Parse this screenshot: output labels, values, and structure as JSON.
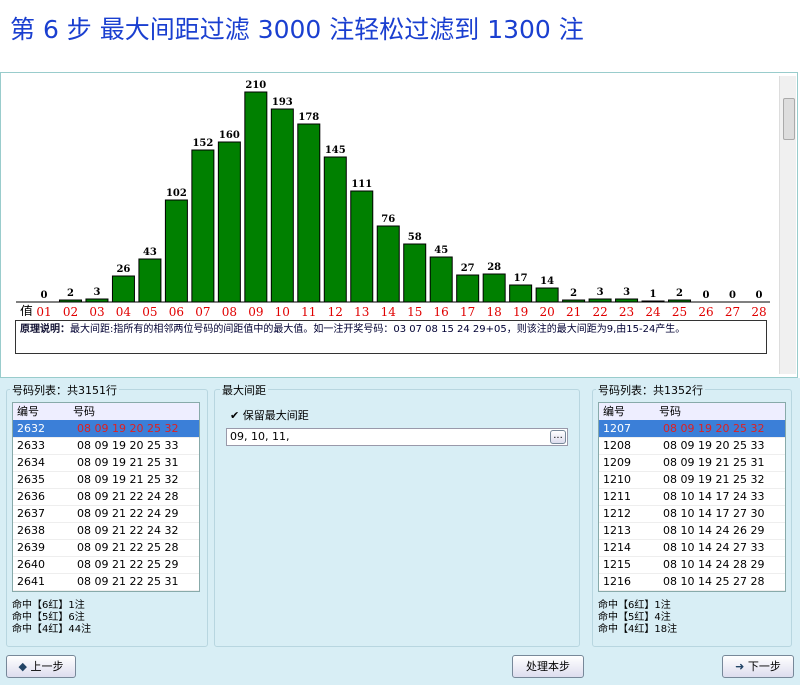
{
  "header": {
    "title": "第 6 步 最大间距过滤 3000 注轻松过滤到 1300 注"
  },
  "chart": {
    "type": "bar",
    "axis_label": "值",
    "color": "#008000",
    "categories": [
      "01",
      "02",
      "03",
      "04",
      "05",
      "06",
      "07",
      "08",
      "09",
      "10",
      "11",
      "12",
      "13",
      "14",
      "15",
      "16",
      "17",
      "18",
      "19",
      "20",
      "21",
      "22",
      "23",
      "24",
      "25",
      "26",
      "27",
      "28"
    ],
    "values": [
      0,
      2,
      3,
      26,
      43,
      102,
      152,
      160,
      210,
      193,
      178,
      145,
      111,
      76,
      58,
      45,
      27,
      28,
      17,
      14,
      2,
      3,
      3,
      1,
      2,
      0,
      0,
      0
    ]
  },
  "explanation": {
    "heading": "原理说明：",
    "text": "最大间距:指所有的相邻两位号码的间距值中的最大值。如一注开奖号码：03 07 08 15 24 29+05，则该注的最大间距为9,由15-24产生。"
  },
  "left_list": {
    "label": "号码列表：共3151行",
    "columns": [
      "编号",
      "号码"
    ],
    "rows": [
      [
        "2632",
        "08 09 19 20 25 32"
      ],
      [
        "2633",
        "08 09 19 20 25 33"
      ],
      [
        "2634",
        "08 09 19 21 25 31"
      ],
      [
        "2635",
        "08 09 19 21 25 32"
      ],
      [
        "2636",
        "08 09 21 22 24 28"
      ],
      [
        "2637",
        "08 09 21 22 24 29"
      ],
      [
        "2638",
        "08 09 21 22 24 32"
      ],
      [
        "2639",
        "08 09 21 22 25 28"
      ],
      [
        "2640",
        "08 09 21 22 25 29"
      ],
      [
        "2641",
        "08 09 21 22 25 31"
      ]
    ],
    "hits": [
      "命中【6红】1注",
      "命中【5红】6注",
      "命中【4红】44注"
    ]
  },
  "middle": {
    "label": "最大间距",
    "checkbox": "保留最大间距",
    "input": "09, 10, 11,",
    "browse": "..."
  },
  "right_list": {
    "label": "号码列表：共1352行",
    "columns": [
      "编号",
      "号码"
    ],
    "rows": [
      [
        "1207",
        "08 09 19 20 25 32"
      ],
      [
        "1208",
        "08 09 19 20 25 33"
      ],
      [
        "1209",
        "08 09 19 21 25 31"
      ],
      [
        "1210",
        "08 09 19 21 25 32"
      ],
      [
        "1211",
        "08 10 14 17 24 33"
      ],
      [
        "1212",
        "08 10 14 17 27 30"
      ],
      [
        "1213",
        "08 10 14 24 26 29"
      ],
      [
        "1214",
        "08 10 14 24 27 33"
      ],
      [
        "1215",
        "08 10 14 24 28 29"
      ],
      [
        "1216",
        "08 10 14 25 27 28"
      ]
    ],
    "hits": [
      "命中【6红】1注",
      "命中【5红】4注",
      "命中【4红】18注"
    ]
  },
  "buttons": {
    "prev": "上一步",
    "process": "处理本步",
    "next": "下一步"
  }
}
